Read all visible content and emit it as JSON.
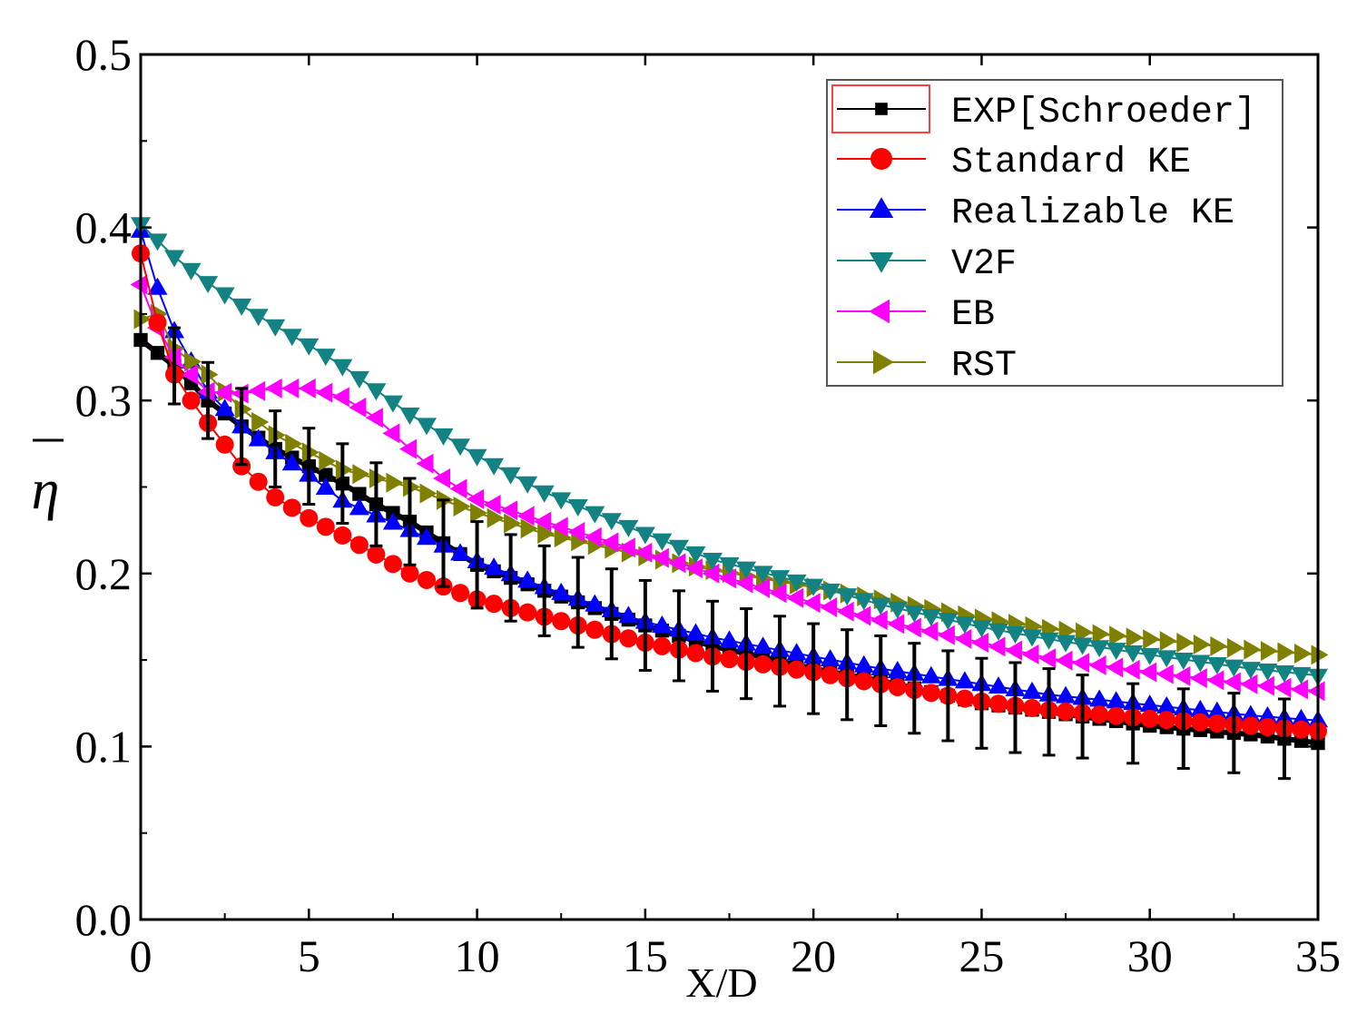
{
  "chart_data": {
    "type": "line",
    "xlabel": "X/D",
    "ylabel": "η",
    "xlim": [
      0,
      35
    ],
    "ylim": [
      0.0,
      0.5
    ],
    "x_ticks": [
      0,
      5,
      10,
      15,
      20,
      25,
      30,
      35
    ],
    "x_tick_labels": [
      "0",
      "5",
      "10",
      "15",
      "20",
      "25",
      "30",
      "35"
    ],
    "y_ticks": [
      0.0,
      0.1,
      0.2,
      0.3,
      0.4,
      0.5
    ],
    "y_tick_labels": [
      "0.0",
      "0.1",
      "0.2",
      "0.3",
      "0.4",
      "0.5"
    ],
    "grid": false,
    "legend_position": "top-right",
    "series": [
      {
        "name": "EXP[Schroeder]",
        "color": "#000000",
        "marker": "square",
        "errorbars": true,
        "x_start": 0,
        "x_end": 35,
        "x_step": 0.5,
        "anchors_x": [
          0,
          1,
          2,
          3,
          4,
          5,
          6,
          7,
          8,
          10,
          12,
          15,
          17,
          20,
          22,
          25,
          27,
          30,
          33,
          35
        ],
        "anchors_y": [
          0.335,
          0.32,
          0.3,
          0.285,
          0.272,
          0.262,
          0.252,
          0.24,
          0.23,
          0.205,
          0.19,
          0.17,
          0.158,
          0.145,
          0.138,
          0.125,
          0.12,
          0.112,
          0.107,
          0.102
        ],
        "error_x": [
          1,
          2,
          3,
          4,
          5,
          6,
          7,
          8,
          9,
          10,
          11,
          12,
          13,
          14,
          15,
          16,
          17,
          18,
          19,
          20,
          21,
          22,
          23,
          24,
          25,
          26,
          27,
          28,
          29.5,
          31,
          32.5,
          34
        ],
        "error_half_width": [
          0.022,
          0.022,
          0.022,
          0.022,
          0.022,
          0.023,
          0.024,
          0.025,
          0.025,
          0.025,
          0.025,
          0.026,
          0.026,
          0.026,
          0.026,
          0.026,
          0.026,
          0.026,
          0.026,
          0.026,
          0.026,
          0.026,
          0.026,
          0.026,
          0.026,
          0.026,
          0.025,
          0.024,
          0.023,
          0.023,
          0.023,
          0.023
        ]
      },
      {
        "name": "Standard KE",
        "color": "#ff0000",
        "marker": "circle",
        "x_start": 0,
        "x_end": 35,
        "x_step": 0.5,
        "anchors_x": [
          0,
          0.5,
          1,
          1.5,
          2,
          3,
          4,
          5,
          6,
          8,
          10,
          12,
          15,
          17,
          20,
          22,
          25,
          27,
          30,
          33,
          35
        ],
        "anchors_y": [
          0.385,
          0.345,
          0.315,
          0.3,
          0.287,
          0.262,
          0.244,
          0.232,
          0.222,
          0.2,
          0.185,
          0.175,
          0.16,
          0.152,
          0.143,
          0.136,
          0.126,
          0.121,
          0.116,
          0.112,
          0.109
        ]
      },
      {
        "name": "Realizable KE",
        "color": "#0000ff",
        "marker": "triangle-up",
        "x_start": 0,
        "x_end": 35,
        "x_step": 0.5,
        "anchors_x": [
          0,
          0.5,
          1,
          2,
          3,
          4,
          5,
          6,
          8,
          10,
          12,
          15,
          17,
          20,
          22,
          25,
          27,
          30,
          33,
          35
        ],
        "anchors_y": [
          0.398,
          0.365,
          0.34,
          0.305,
          0.285,
          0.27,
          0.257,
          0.242,
          0.225,
          0.207,
          0.192,
          0.172,
          0.163,
          0.152,
          0.145,
          0.136,
          0.13,
          0.124,
          0.118,
          0.115
        ]
      },
      {
        "name": "V2F",
        "color": "#128282",
        "marker": "triangle-down",
        "x_start": 0,
        "x_end": 35,
        "x_step": 0.5,
        "anchors_x": [
          0,
          1,
          2,
          3,
          4,
          5,
          6,
          8,
          10,
          12,
          15,
          17,
          20,
          22,
          25,
          27,
          30,
          33,
          35
        ],
        "anchors_y": [
          0.402,
          0.383,
          0.368,
          0.355,
          0.343,
          0.332,
          0.32,
          0.292,
          0.268,
          0.247,
          0.223,
          0.208,
          0.193,
          0.182,
          0.169,
          0.162,
          0.153,
          0.145,
          0.141
        ]
      },
      {
        "name": "EB",
        "color": "#ff00ff",
        "marker": "triangle-left",
        "x_start": 0,
        "x_end": 35,
        "x_step": 0.5,
        "anchors_x": [
          0,
          0.5,
          1,
          2,
          3,
          4,
          5,
          6,
          7,
          8,
          9,
          10,
          12,
          15,
          17,
          20,
          22,
          25,
          27,
          30,
          33,
          35
        ],
        "anchors_y": [
          0.367,
          0.342,
          0.325,
          0.305,
          0.304,
          0.307,
          0.307,
          0.302,
          0.29,
          0.272,
          0.255,
          0.243,
          0.23,
          0.212,
          0.2,
          0.183,
          0.173,
          0.16,
          0.151,
          0.143,
          0.136,
          0.132
        ]
      },
      {
        "name": "RST",
        "color": "#7f7f00",
        "marker": "triangle-right",
        "x_start": 0,
        "x_end": 35,
        "x_step": 0.5,
        "anchors_x": [
          0,
          0.5,
          1,
          2,
          3,
          4,
          5,
          6,
          8,
          10,
          12,
          15,
          17,
          20,
          22,
          25,
          27,
          30,
          33,
          35
        ],
        "anchors_y": [
          0.347,
          0.35,
          0.33,
          0.315,
          0.295,
          0.28,
          0.27,
          0.26,
          0.25,
          0.235,
          0.223,
          0.21,
          0.202,
          0.192,
          0.185,
          0.174,
          0.168,
          0.162,
          0.156,
          0.153
        ]
      }
    ]
  }
}
